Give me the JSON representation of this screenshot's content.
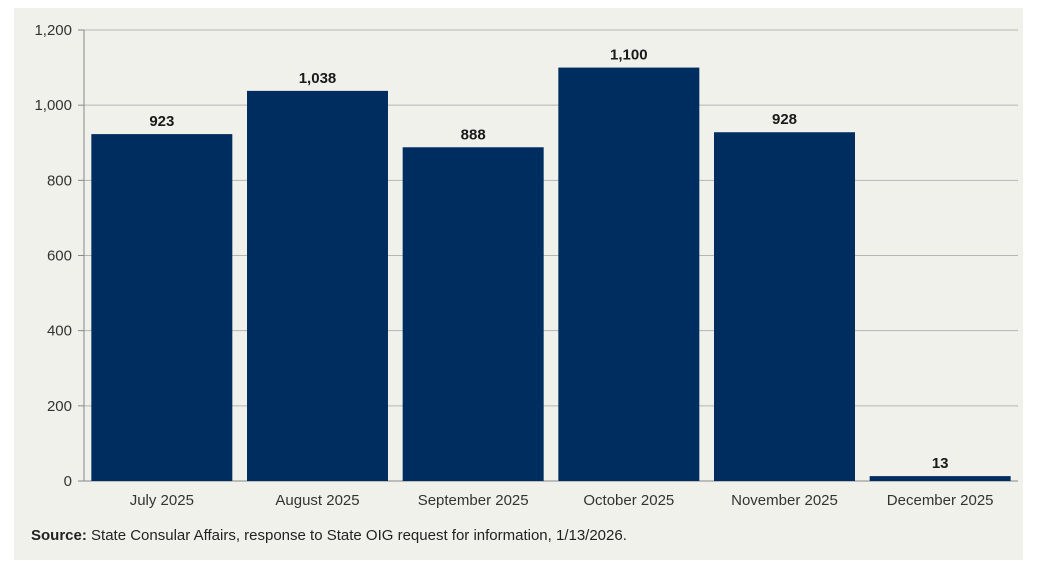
{
  "chart_data": {
    "type": "bar",
    "title": "",
    "xlabel": "",
    "ylabel": "",
    "categories": [
      "July 2025",
      "August 2025",
      "September 2025",
      "October 2025",
      "November 2025",
      "December 2025"
    ],
    "values": [
      923,
      1038,
      888,
      1100,
      928,
      13
    ],
    "value_labels": [
      "923",
      "1,038",
      "888",
      "1,100",
      "928",
      "13"
    ],
    "ylim": [
      0,
      1200
    ],
    "yticks": [
      0,
      200,
      400,
      600,
      800,
      1000,
      1200
    ],
    "ytick_labels": [
      "0",
      "200",
      "400",
      "600",
      "800",
      "1,000",
      "1,200"
    ],
    "grid": true,
    "bar_color": "#002d5f",
    "grid_color": "#b5b5b5",
    "background_color": "#f1f1ec"
  },
  "source": {
    "label": "Source:",
    "text": " State Consular Affairs, response to State OIG request for information, 1/13/2026."
  }
}
